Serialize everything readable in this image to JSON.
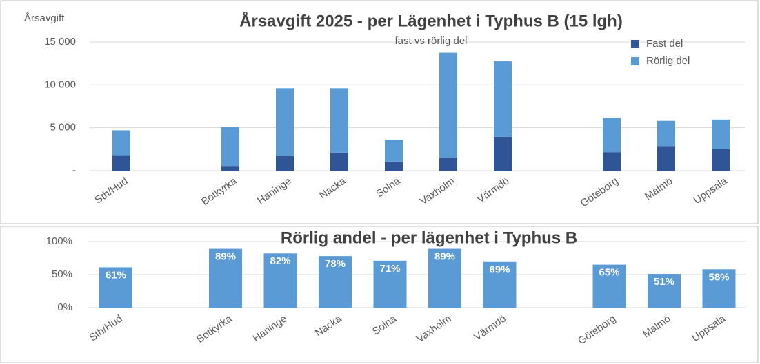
{
  "chart_data": [
    {
      "type": "stacked_bar",
      "title": "Årsavgift 2025 - per Lägenhet i Typhus B (15 lgh)",
      "subtitle": "fast vs rörlig del",
      "ylabel": "Årsavgift",
      "categories": [
        "Sth/Hud",
        null,
        "Botkyrka",
        "Haninge",
        "Nacka",
        "Solna",
        "Vaxholm",
        "Värmdö",
        null,
        "Göteborg",
        "Malmö",
        "Uppsala"
      ],
      "series": [
        {
          "name": "Fast del",
          "color": "#2f5597",
          "values": [
            1800,
            null,
            550,
            1700,
            2100,
            1050,
            1500,
            3950,
            null,
            2150,
            2850,
            2500
          ]
        },
        {
          "name": "Rörlig del",
          "color": "#5b9bd5",
          "values": [
            2900,
            null,
            4550,
            7900,
            7500,
            2550,
            12250,
            8800,
            null,
            4000,
            2950,
            3450
          ]
        }
      ],
      "ylim": [
        0,
        15000
      ],
      "yticks": [
        {
          "value": 0,
          "label": "-"
        },
        {
          "value": 5000,
          "label": "5 000"
        },
        {
          "value": 10000,
          "label": "10 000"
        },
        {
          "value": 15000,
          "label": "15 000"
        }
      ],
      "grid": true,
      "legend": "upper right"
    },
    {
      "type": "bar",
      "title": "Rörlig andel - per lägenhet i Typhus B",
      "color": "#5b9bd5",
      "categories": [
        "Sth/Hud",
        null,
        "Botkyrka",
        "Haninge",
        "Nacka",
        "Solna",
        "Vaxholm",
        "Värmdö",
        null,
        "Göteborg",
        "Malmö",
        "Uppsala"
      ],
      "values": [
        61,
        null,
        89,
        82,
        78,
        71,
        89,
        69,
        null,
        65,
        51,
        58
      ],
      "value_labels": [
        "61%",
        null,
        "89%",
        "82%",
        "78%",
        "71%",
        "89%",
        "69%",
        null,
        "65%",
        "51%",
        "58%"
      ],
      "ylim": [
        0,
        100
      ],
      "yticks": [
        {
          "value": 0,
          "label": "0%"
        },
        {
          "value": 50,
          "label": "50%"
        },
        {
          "value": 100,
          "label": "100%"
        }
      ],
      "grid": true
    }
  ]
}
